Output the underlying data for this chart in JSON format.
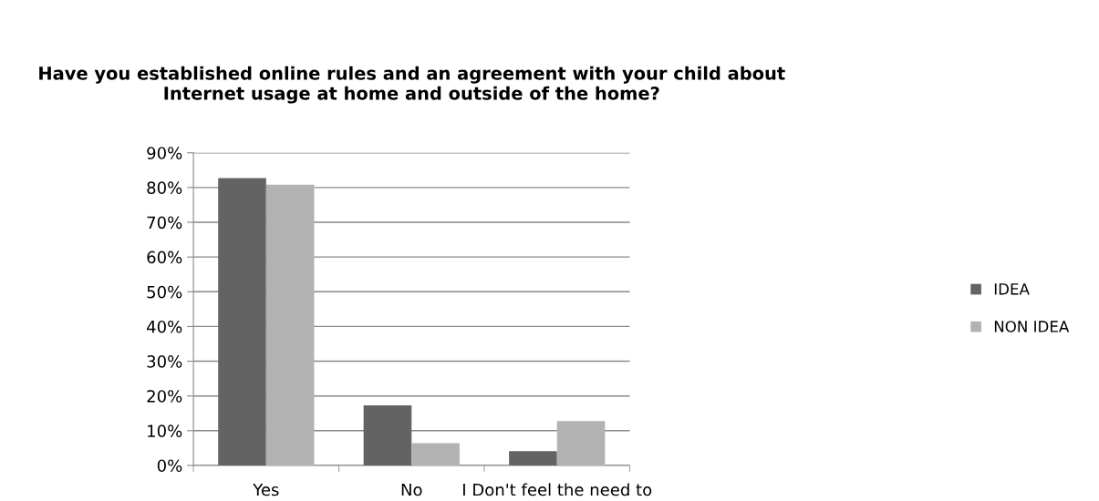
{
  "chart_data": {
    "type": "bar",
    "title": "Have you established online rules and an agreement with your child about\nInternet usage at home and outside of the home?",
    "categories": [
      "Yes",
      "No",
      "I Don't feel the need to"
    ],
    "series": [
      {
        "name": "IDEA",
        "color": "#636363",
        "values": [
          0.827,
          0.173,
          0.041
        ]
      },
      {
        "name": "NON IDEA",
        "color": "#b2b2b2",
        "values": [
          0.808,
          0.064,
          0.128
        ]
      }
    ],
    "ylim": [
      0,
      0.9
    ],
    "yticks": [
      {
        "value": 0,
        "label": "0%"
      },
      {
        "value": 0.1,
        "label": "10%"
      },
      {
        "value": 0.2,
        "label": "20%"
      },
      {
        "value": 0.3,
        "label": "30%"
      },
      {
        "value": 0.4,
        "label": "40%"
      },
      {
        "value": 0.5,
        "label": "50%"
      },
      {
        "value": 0.6,
        "label": "60%"
      },
      {
        "value": 0.7,
        "label": "70%"
      },
      {
        "value": 0.8,
        "label": "80%"
      },
      {
        "value": 0.9,
        "label": "90%"
      }
    ],
    "grid": "y",
    "legend": "right"
  }
}
